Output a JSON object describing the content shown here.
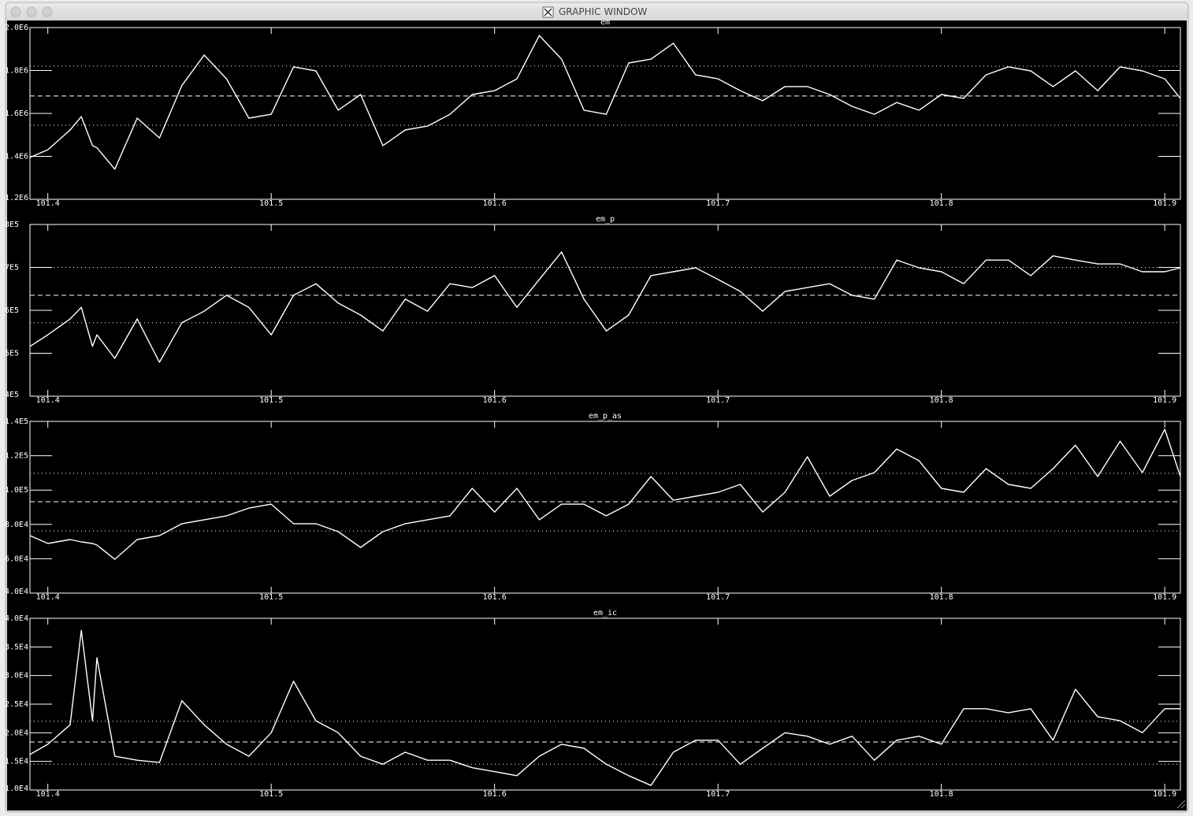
{
  "window": {
    "title": "GRAPHIC WINDOW"
  },
  "chart_data": [
    {
      "type": "line",
      "title": "em",
      "color": "#ffffff",
      "x": [
        101.392,
        101.4,
        101.41,
        101.415,
        101.42,
        101.422,
        101.43,
        101.44,
        101.45,
        101.46,
        101.47,
        101.48,
        101.49,
        101.5,
        101.51,
        101.52,
        101.53,
        101.54,
        101.55,
        101.56,
        101.57,
        101.58,
        101.59,
        101.6,
        101.61,
        101.62,
        101.63,
        101.64,
        101.65,
        101.66,
        101.67,
        101.68,
        101.69,
        101.7,
        101.71,
        101.72,
        101.73,
        101.74,
        101.75,
        101.76,
        101.77,
        101.78,
        101.79,
        101.8,
        101.81,
        101.82,
        101.83,
        101.84,
        101.85,
        101.86,
        101.87,
        101.88,
        101.89,
        101.9,
        101.907
      ],
      "values": [
        1395000,
        1431000,
        1523000,
        1585000,
        1450000,
        1440000,
        1340000,
        1578000,
        1486000,
        1730000,
        1872000,
        1761000,
        1578000,
        1596000,
        1817000,
        1798000,
        1615000,
        1688000,
        1450000,
        1523000,
        1541000,
        1596000,
        1688000,
        1706000,
        1761000,
        1963000,
        1853000,
        1615000,
        1596000,
        1835000,
        1853000,
        1927000,
        1780000,
        1761000,
        1706000,
        1659000,
        1725000,
        1725000,
        1688000,
        1633000,
        1596000,
        1651000,
        1615000,
        1688000,
        1670000,
        1780000,
        1817000,
        1798000,
        1725000,
        1798000,
        1706000,
        1817000,
        1798000,
        1761000,
        1670000
      ],
      "xlim": [
        101.392,
        101.907
      ],
      "xticks": [
        101.4,
        101.5,
        101.6,
        101.7,
        101.8,
        101.9
      ],
      "ylim": [
        1200000,
        2000000
      ],
      "yticks": [
        {
          "value": 1200000,
          "label": "1.2E6"
        },
        {
          "value": 1400000,
          "label": "1.4E6"
        },
        {
          "value": 1600000,
          "label": "1.6E6"
        },
        {
          "value": 1800000,
          "label": "1.8E6"
        },
        {
          "value": 2000000,
          "label": "2.0E6"
        }
      ],
      "hlines": [
        {
          "value": 1681000,
          "style": "dashed"
        },
        {
          "value": 1820000,
          "style": "dotted"
        },
        {
          "value": 1545000,
          "style": "dotted"
        }
      ]
    },
    {
      "type": "line",
      "title": "em_p",
      "color": "#ffffff",
      "x": [
        101.392,
        101.4,
        101.41,
        101.415,
        101.42,
        101.422,
        101.43,
        101.44,
        101.45,
        101.46,
        101.47,
        101.48,
        101.49,
        101.5,
        101.51,
        101.52,
        101.53,
        101.54,
        101.55,
        101.56,
        101.57,
        101.58,
        101.59,
        101.6,
        101.61,
        101.62,
        101.63,
        101.64,
        101.65,
        101.66,
        101.67,
        101.68,
        101.69,
        101.7,
        101.71,
        101.72,
        101.73,
        101.74,
        101.75,
        101.76,
        101.77,
        101.78,
        101.79,
        101.8,
        101.81,
        101.82,
        101.83,
        101.84,
        101.85,
        101.86,
        101.87,
        101.88,
        101.89,
        101.9,
        101.907
      ],
      "values": [
        516000,
        543000,
        580000,
        607000,
        516000,
        543000,
        488000,
        580000,
        479000,
        571000,
        598000,
        635000,
        607000,
        543000,
        635000,
        662000,
        617000,
        589000,
        552000,
        626000,
        598000,
        662000,
        653000,
        681000,
        607000,
        672000,
        736000,
        626000,
        552000,
        589000,
        681000,
        690000,
        699000,
        672000,
        644000,
        598000,
        644000,
        653000,
        662000,
        635000,
        626000,
        717000,
        699000,
        690000,
        662000,
        717000,
        717000,
        681000,
        727000,
        717000,
        708000,
        708000,
        690000,
        690000,
        699000
      ],
      "xlim": [
        101.392,
        101.907
      ],
      "xticks": [
        101.4,
        101.5,
        101.6,
        101.7,
        101.8,
        101.9
      ],
      "ylim": [
        400000,
        800000
      ],
      "yticks": [
        {
          "value": 400000,
          "label": "4E5"
        },
        {
          "value": 500000,
          "label": "5E5"
        },
        {
          "value": 600000,
          "label": "6E5"
        },
        {
          "value": 700000,
          "label": "7E5"
        },
        {
          "value": 800000,
          "label": "8E5"
        }
      ],
      "hlines": [
        {
          "value": 635000,
          "style": "dashed"
        },
        {
          "value": 700000,
          "style": "dotted"
        },
        {
          "value": 571000,
          "style": "dotted"
        }
      ]
    },
    {
      "type": "line",
      "title": "em_p_as",
      "color": "#ffffff",
      "x": [
        101.392,
        101.4,
        101.41,
        101.415,
        101.42,
        101.422,
        101.43,
        101.44,
        101.45,
        101.46,
        101.47,
        101.48,
        101.49,
        101.5,
        101.51,
        101.52,
        101.53,
        101.54,
        101.55,
        101.56,
        101.57,
        101.58,
        101.59,
        101.6,
        101.61,
        101.62,
        101.63,
        101.64,
        101.65,
        101.66,
        101.67,
        101.68,
        101.69,
        101.7,
        101.71,
        101.72,
        101.73,
        101.74,
        101.75,
        101.76,
        101.77,
        101.78,
        101.79,
        101.8,
        101.81,
        101.82,
        101.83,
        101.84,
        101.85,
        101.86,
        101.87,
        101.88,
        101.89,
        101.9,
        101.907
      ],
      "values": [
        73500,
        68900,
        71200,
        69800,
        68900,
        68000,
        59700,
        71200,
        73500,
        80400,
        82700,
        85000,
        89500,
        91800,
        80400,
        80400,
        75800,
        66600,
        75800,
        80400,
        82700,
        85000,
        101000,
        87200,
        101000,
        82700,
        91800,
        91800,
        85000,
        91800,
        107900,
        94100,
        96400,
        98700,
        103300,
        87200,
        98700,
        119400,
        96400,
        105600,
        110200,
        123900,
        117100,
        101000,
        98700,
        112500,
        103300,
        101000,
        112500,
        126200,
        107900,
        128500,
        110200,
        135400,
        107900
      ],
      "xlim": [
        101.392,
        101.907
      ],
      "xticks": [
        101.4,
        101.5,
        101.6,
        101.7,
        101.8,
        101.9
      ],
      "ylim": [
        40000,
        140000
      ],
      "yticks": [
        {
          "value": 40000,
          "label": "4.0E4"
        },
        {
          "value": 60000,
          "label": "6.0E4"
        },
        {
          "value": 80000,
          "label": "8.0E4"
        },
        {
          "value": 100000,
          "label": "1.0E5"
        },
        {
          "value": 120000,
          "label": "1.2E5"
        },
        {
          "value": 140000,
          "label": "1.4E5"
        }
      ],
      "hlines": [
        {
          "value": 93200,
          "style": "dashed"
        },
        {
          "value": 109700,
          "style": "dotted"
        },
        {
          "value": 76200,
          "style": "dotted"
        }
      ]
    },
    {
      "type": "line",
      "title": "em_ic",
      "color": "#ffffff",
      "x": [
        101.392,
        101.4,
        101.41,
        101.415,
        101.42,
        101.422,
        101.43,
        101.44,
        101.45,
        101.46,
        101.47,
        101.48,
        101.49,
        101.5,
        101.51,
        101.52,
        101.53,
        101.54,
        101.55,
        101.56,
        101.57,
        101.58,
        101.59,
        101.6,
        101.61,
        101.62,
        101.63,
        101.64,
        101.65,
        101.66,
        101.67,
        101.68,
        101.69,
        101.7,
        101.71,
        101.72,
        101.73,
        101.74,
        101.75,
        101.76,
        101.77,
        101.78,
        101.79,
        101.8,
        101.81,
        101.82,
        101.83,
        101.84,
        101.85,
        101.86,
        101.87,
        101.88,
        101.89,
        101.9,
        101.907
      ],
      "values": [
        16200,
        18000,
        21400,
        37900,
        22100,
        33100,
        15900,
        15200,
        14800,
        25600,
        21400,
        18000,
        15900,
        20000,
        29000,
        22100,
        20000,
        15900,
        14500,
        16600,
        15200,
        15200,
        13900,
        13200,
        12500,
        15900,
        18000,
        17300,
        14500,
        12500,
        10800,
        16600,
        18700,
        18700,
        14500,
        17300,
        20000,
        19400,
        18000,
        19400,
        15200,
        18700,
        19400,
        18000,
        24200,
        24200,
        23500,
        24200,
        18700,
        27600,
        22800,
        22100,
        20000,
        24200,
        24200
      ],
      "xlim": [
        101.392,
        101.907
      ],
      "xticks": [
        101.4,
        101.5,
        101.6,
        101.7,
        101.8,
        101.9
      ],
      "ylim": [
        10000,
        40000
      ],
      "yticks": [
        {
          "value": 10000,
          "label": "1.0E4"
        },
        {
          "value": 15000,
          "label": "1.5E4"
        },
        {
          "value": 20000,
          "label": "2.0E4"
        },
        {
          "value": 25000,
          "label": "2.5E4"
        },
        {
          "value": 30000,
          "label": "3.0E4"
        },
        {
          "value": 35000,
          "label": "3.5E4"
        },
        {
          "value": 40000,
          "label": "4.0E4"
        }
      ],
      "hlines": [
        {
          "value": 18400,
          "style": "dashed"
        },
        {
          "value": 22000,
          "style": "dotted"
        },
        {
          "value": 14500,
          "style": "dotted"
        }
      ]
    }
  ]
}
